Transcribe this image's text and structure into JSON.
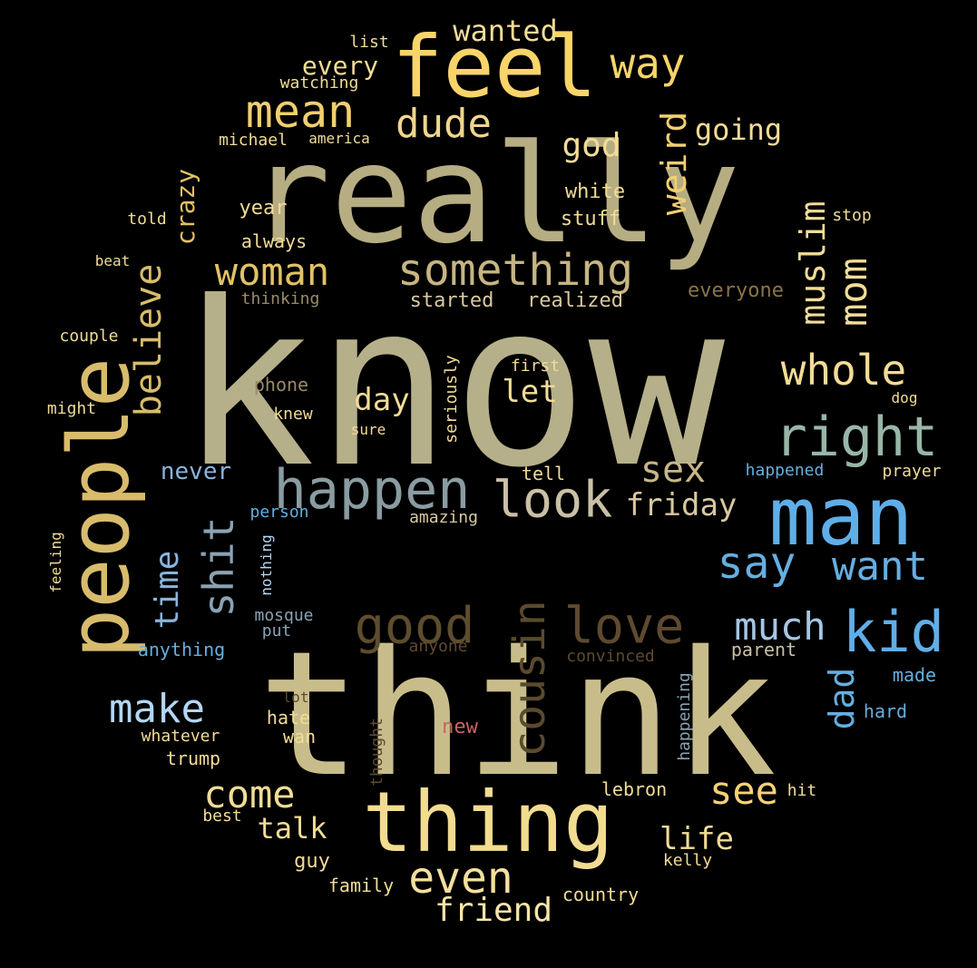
{
  "words": [
    {
      "text": "know",
      "color": "#b5b08a"
    },
    {
      "text": "think",
      "color": "#c8bd8a"
    },
    {
      "text": "really",
      "color": "#b6ad82"
    },
    {
      "text": "feel",
      "color": "#f8d46a"
    },
    {
      "text": "people",
      "color": "#d8bc6c"
    },
    {
      "text": "thing",
      "color": "#f2dc90"
    },
    {
      "text": "man",
      "color": "#60aee8"
    },
    {
      "text": "happen",
      "color": "#8a9ca2"
    },
    {
      "text": "something",
      "color": "#c6b582"
    },
    {
      "text": "right",
      "color": "#98b6a8"
    },
    {
      "text": "look",
      "color": "#c9c0a6"
    },
    {
      "text": "good",
      "color": "#5e4c2e"
    },
    {
      "text": "love",
      "color": "#5e4a30"
    },
    {
      "text": "kid",
      "color": "#60aee8"
    },
    {
      "text": "cousin",
      "color": "#5a4a2e"
    },
    {
      "text": "even",
      "color": "#f4df9c"
    },
    {
      "text": "woman",
      "color": "#e2c266"
    },
    {
      "text": "mean",
      "color": "#f1cf70"
    },
    {
      "text": "dude",
      "color": "#f0d68c"
    },
    {
      "text": "whole",
      "color": "#f2dc96"
    },
    {
      "text": "say",
      "color": "#66aee0"
    },
    {
      "text": "want",
      "color": "#66aee0"
    },
    {
      "text": "way",
      "color": "#f8d46a"
    },
    {
      "text": "shit",
      "color": "#8aa2b4"
    },
    {
      "text": "believe",
      "color": "#d8bc6c"
    },
    {
      "text": "sex",
      "color": "#c8b68a"
    },
    {
      "text": "friday",
      "color": "#d8c8a0"
    },
    {
      "text": "much",
      "color": "#a6c6e2"
    },
    {
      "text": "make",
      "color": "#b4d6f2"
    },
    {
      "text": "come",
      "color": "#f2dc96"
    },
    {
      "text": "see",
      "color": "#f6d276"
    },
    {
      "text": "weird",
      "color": "#f2d070"
    },
    {
      "text": "mom",
      "color": "#f2dc96"
    },
    {
      "text": "muslim",
      "color": "#f2dc96"
    },
    {
      "text": "time",
      "color": "#8ab4dc"
    },
    {
      "text": "dad",
      "color": "#66aee0"
    },
    {
      "text": "friend",
      "color": "#f8e4aa"
    },
    {
      "text": "life",
      "color": "#f2dc96"
    },
    {
      "text": "talk",
      "color": "#f2dc96"
    },
    {
      "text": "wanted",
      "color": "#f2dc96"
    },
    {
      "text": "every",
      "color": "#f2dc96"
    },
    {
      "text": "god",
      "color": "#f2dc96"
    },
    {
      "text": "going",
      "color": "#f2dc96"
    },
    {
      "text": "day",
      "color": "#f2dc96"
    },
    {
      "text": "let",
      "color": "#f2dc96"
    },
    {
      "text": "crazy",
      "color": "#e2c266"
    },
    {
      "text": "never",
      "color": "#8ab4dc"
    },
    {
      "text": "white",
      "color": "#f2dc96"
    },
    {
      "text": "stuff",
      "color": "#f2dc96"
    },
    {
      "text": "year",
      "color": "#f2dc96"
    },
    {
      "text": "always",
      "color": "#f2dc96"
    },
    {
      "text": "started",
      "color": "#d8c8a0"
    },
    {
      "text": "realized",
      "color": "#d8c8a0"
    },
    {
      "text": "everyone",
      "color": "#8a7448"
    },
    {
      "text": "thinking",
      "color": "#9a8a6a"
    },
    {
      "text": "michael",
      "color": "#f2dc96"
    },
    {
      "text": "america",
      "color": "#f2dc96"
    },
    {
      "text": "watching",
      "color": "#f2dc96"
    },
    {
      "text": "list",
      "color": "#f2dc96"
    },
    {
      "text": "told",
      "color": "#f2dc96"
    },
    {
      "text": "beat",
      "color": "#f2dc96"
    },
    {
      "text": "couple",
      "color": "#f2dc96"
    },
    {
      "text": "might",
      "color": "#f2dc96"
    },
    {
      "text": "phone",
      "color": "#9a8a6a"
    },
    {
      "text": "knew",
      "color": "#f2dc96"
    },
    {
      "text": "sure",
      "color": "#f2dc96"
    },
    {
      "text": "first",
      "color": "#f2dc96"
    },
    {
      "text": "seriously",
      "color": "#f2dc96"
    },
    {
      "text": "dog",
      "color": "#f2dc96"
    },
    {
      "text": "stop",
      "color": "#f2dc96"
    },
    {
      "text": "tell",
      "color": "#f2dc96"
    },
    {
      "text": "happened",
      "color": "#66aee0"
    },
    {
      "text": "prayer",
      "color": "#f2dc96"
    },
    {
      "text": "person",
      "color": "#66aee0"
    },
    {
      "text": "amazing",
      "color": "#d8c8a0"
    },
    {
      "text": "nothing",
      "color": "#b4d6f2"
    },
    {
      "text": "feeling",
      "color": "#f2dc96"
    },
    {
      "text": "mosque",
      "color": "#8aa2b4"
    },
    {
      "text": "put",
      "color": "#8aa2b4"
    },
    {
      "text": "anything",
      "color": "#66aee0"
    },
    {
      "text": "anyone",
      "color": "#5e4a30"
    },
    {
      "text": "convinced",
      "color": "#5e4a30"
    },
    {
      "text": "parent",
      "color": "#c9c0a6"
    },
    {
      "text": "made",
      "color": "#66aee0"
    },
    {
      "text": "hard",
      "color": "#66aee0"
    },
    {
      "text": "happening",
      "color": "#8aa2b4"
    },
    {
      "text": "lot",
      "color": "#5e4a30"
    },
    {
      "text": "hate",
      "color": "#f2dc96"
    },
    {
      "text": "wan",
      "color": "#f2dc96"
    },
    {
      "text": "thought",
      "color": "#5e4a30"
    },
    {
      "text": "new",
      "color": "#c86464"
    },
    {
      "text": "whatever",
      "color": "#f2dc96"
    },
    {
      "text": "trump",
      "color": "#f2dc96"
    },
    {
      "text": "lebron",
      "color": "#f2dc96"
    },
    {
      "text": "hit",
      "color": "#f2dc96"
    },
    {
      "text": "best",
      "color": "#f2dc96"
    },
    {
      "text": "guy",
      "color": "#f2dc96"
    },
    {
      "text": "kelly",
      "color": "#f2dc96"
    },
    {
      "text": "family",
      "color": "#f2dc96"
    },
    {
      "text": "country",
      "color": "#f2dc96"
    }
  ]
}
